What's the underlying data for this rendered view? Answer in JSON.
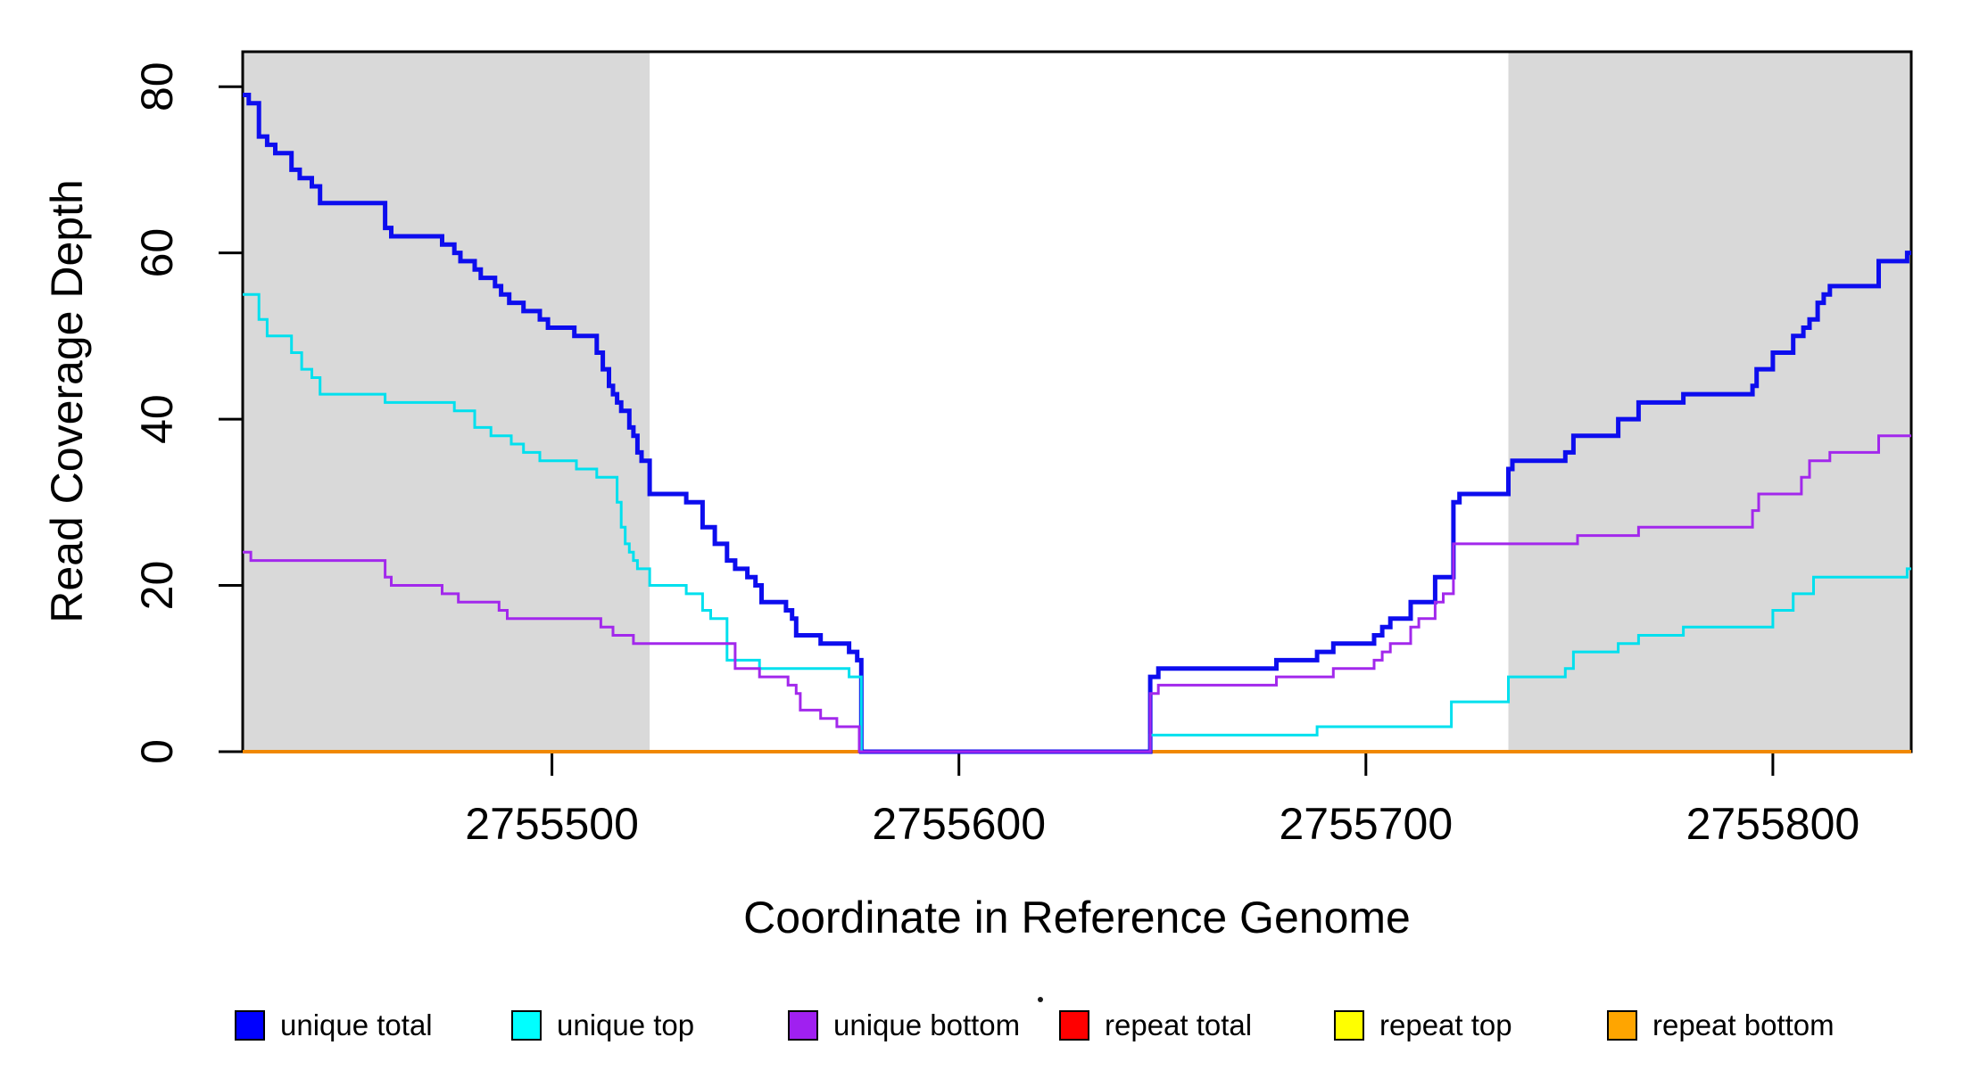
{
  "chart_data": {
    "type": "line",
    "subtype": "step-coverage-plot",
    "title": "",
    "xlabel": "Coordinate in Reference Genome",
    "ylabel": "Read Coverage Depth",
    "xlim": [
      2755424,
      2755834
    ],
    "ylim": [
      0,
      84.2
    ],
    "grid": false,
    "legend_position": "bottom-horizontal",
    "background_color": "#ffffff",
    "frame_color": "#000000",
    "shaded_region_color": "#d9d9d9",
    "shaded_regions": [
      {
        "from": 2755424,
        "to": 2755524
      },
      {
        "from": 2755735,
        "to": 2755834
      }
    ],
    "x_ticks": [
      {
        "value": 2755500,
        "label": "2755500"
      },
      {
        "value": 2755600,
        "label": "2755600"
      },
      {
        "value": 2755700,
        "label": "2755700"
      },
      {
        "value": 2755800,
        "label": "2755800"
      }
    ],
    "y_ticks": [
      {
        "value": 0,
        "label": "0"
      },
      {
        "value": 20,
        "label": "20"
      },
      {
        "value": 40,
        "label": "40"
      },
      {
        "value": 60,
        "label": "60"
      },
      {
        "value": 80,
        "label": "80"
      }
    ],
    "series": [
      {
        "name": "repeat total",
        "color": "#ff0000",
        "line_width": 3,
        "steps": [
          [
            2755424,
            0
          ]
        ]
      },
      {
        "name": "repeat top",
        "color": "#ffff00",
        "line_width": 3,
        "steps": [
          [
            2755424,
            0
          ]
        ]
      },
      {
        "name": "repeat bottom",
        "color": "#f08800",
        "line_width": 4,
        "steps": [
          [
            2755424,
            0
          ]
        ]
      },
      {
        "name": "unique total",
        "color": "#0d0dee",
        "line_width": 5,
        "steps": [
          [
            2755424,
            79
          ],
          [
            2755425.5,
            78
          ],
          [
            2755428,
            74
          ],
          [
            2755430,
            73
          ],
          [
            2755432,
            72
          ],
          [
            2755436,
            70
          ],
          [
            2755438,
            69
          ],
          [
            2755441,
            68
          ],
          [
            2755443,
            66
          ],
          [
            2755459,
            63
          ],
          [
            2755460.5,
            62
          ],
          [
            2755473,
            61
          ],
          [
            2755476,
            60
          ],
          [
            2755477.5,
            59
          ],
          [
            2755481,
            58
          ],
          [
            2755482.5,
            57
          ],
          [
            2755486,
            56
          ],
          [
            2755487.5,
            55
          ],
          [
            2755489.5,
            54
          ],
          [
            2755493,
            53
          ],
          [
            2755497,
            52
          ],
          [
            2755499,
            51
          ],
          [
            2755505.5,
            50
          ],
          [
            2755511,
            48
          ],
          [
            2755512.5,
            46
          ],
          [
            2755514,
            44
          ],
          [
            2755515,
            43
          ],
          [
            2755516,
            42
          ],
          [
            2755517,
            41
          ],
          [
            2755519,
            39
          ],
          [
            2755520,
            38
          ],
          [
            2755521,
            36
          ],
          [
            2755522,
            35
          ],
          [
            2755524,
            31
          ],
          [
            2755533,
            30
          ],
          [
            2755537,
            27
          ],
          [
            2755540,
            25
          ],
          [
            2755543,
            23
          ],
          [
            2755545,
            22
          ],
          [
            2755548,
            21
          ],
          [
            2755550,
            20
          ],
          [
            2755551.5,
            18
          ],
          [
            2755557.5,
            17
          ],
          [
            2755559,
            16
          ],
          [
            2755560,
            14
          ],
          [
            2755566,
            13
          ],
          [
            2755573,
            12
          ],
          [
            2755575,
            11
          ],
          [
            2755576,
            0
          ],
          [
            2755647,
            9
          ],
          [
            2755649,
            10
          ],
          [
            2755678,
            11
          ],
          [
            2755688,
            12
          ],
          [
            2755692,
            13
          ],
          [
            2755702,
            14
          ],
          [
            2755704,
            15
          ],
          [
            2755706,
            16
          ],
          [
            2755711,
            18
          ],
          [
            2755717,
            21
          ],
          [
            2755721.5,
            30
          ],
          [
            2755723,
            31
          ],
          [
            2755735,
            34
          ],
          [
            2755736,
            35
          ],
          [
            2755749,
            36
          ],
          [
            2755751,
            38
          ],
          [
            2755762,
            40
          ],
          [
            2755767,
            42
          ],
          [
            2755778,
            43
          ],
          [
            2755795,
            44
          ],
          [
            2755796,
            46
          ],
          [
            2755800,
            48
          ],
          [
            2755805,
            50
          ],
          [
            2755807.5,
            51
          ],
          [
            2755809,
            52
          ],
          [
            2755811,
            54
          ],
          [
            2755812.5,
            55
          ],
          [
            2755814,
            56
          ],
          [
            2755826,
            59
          ],
          [
            2755833,
            60
          ]
        ]
      },
      {
        "name": "unique top",
        "color": "#00e0ee",
        "line_width": 3,
        "steps": [
          [
            2755424,
            55
          ],
          [
            2755428,
            52
          ],
          [
            2755430,
            50
          ],
          [
            2755436,
            48
          ],
          [
            2755438.5,
            46
          ],
          [
            2755441,
            45
          ],
          [
            2755443,
            43
          ],
          [
            2755459,
            42
          ],
          [
            2755476,
            41
          ],
          [
            2755481,
            39
          ],
          [
            2755485,
            38
          ],
          [
            2755490,
            37
          ],
          [
            2755493,
            36
          ],
          [
            2755497,
            35
          ],
          [
            2755506,
            34
          ],
          [
            2755511,
            33
          ],
          [
            2755516,
            30
          ],
          [
            2755517,
            27
          ],
          [
            2755518,
            25
          ],
          [
            2755519,
            24
          ],
          [
            2755520,
            23
          ],
          [
            2755521,
            22
          ],
          [
            2755524,
            20
          ],
          [
            2755533,
            19
          ],
          [
            2755537,
            17
          ],
          [
            2755539,
            16
          ],
          [
            2755543,
            11
          ],
          [
            2755551,
            10
          ],
          [
            2755573,
            9
          ],
          [
            2755576,
            0
          ],
          [
            2755647,
            2
          ],
          [
            2755688,
            3
          ],
          [
            2755721,
            6
          ],
          [
            2755735,
            9
          ],
          [
            2755749,
            10
          ],
          [
            2755751,
            12
          ],
          [
            2755762,
            13
          ],
          [
            2755767,
            14
          ],
          [
            2755778,
            15
          ],
          [
            2755800,
            17
          ],
          [
            2755805,
            19
          ],
          [
            2755810,
            21
          ],
          [
            2755833,
            22
          ]
        ]
      },
      {
        "name": "unique bottom",
        "color": "#a228ec",
        "line_width": 3,
        "steps": [
          [
            2755424,
            24
          ],
          [
            2755426,
            23
          ],
          [
            2755459,
            21
          ],
          [
            2755460.5,
            20
          ],
          [
            2755473,
            19
          ],
          [
            2755477,
            18
          ],
          [
            2755487,
            17
          ],
          [
            2755489,
            16
          ],
          [
            2755512,
            15
          ],
          [
            2755515,
            14
          ],
          [
            2755520,
            13
          ],
          [
            2755545,
            10
          ],
          [
            2755551,
            9
          ],
          [
            2755558,
            8
          ],
          [
            2755560,
            7
          ],
          [
            2755561,
            5
          ],
          [
            2755566,
            4
          ],
          [
            2755570,
            3
          ],
          [
            2755575.5,
            0
          ],
          [
            2755647,
            7
          ],
          [
            2755649,
            8
          ],
          [
            2755678,
            9
          ],
          [
            2755692,
            10
          ],
          [
            2755702,
            11
          ],
          [
            2755704,
            12
          ],
          [
            2755706,
            13
          ],
          [
            2755711,
            15
          ],
          [
            2755713,
            16
          ],
          [
            2755717,
            18
          ],
          [
            2755719,
            19
          ],
          [
            2755721.5,
            25
          ],
          [
            2755752,
            26
          ],
          [
            2755767,
            27
          ],
          [
            2755795,
            29
          ],
          [
            2755796.5,
            31
          ],
          [
            2755807,
            33
          ],
          [
            2755809,
            35
          ],
          [
            2755814,
            36
          ],
          [
            2755826,
            38
          ]
        ]
      }
    ],
    "legend": [
      {
        "label": "unique total",
        "color": "#0000ff"
      },
      {
        "label": "unique top",
        "color": "#00ffff"
      },
      {
        "label": "unique bottom",
        "color": "#a020f0"
      },
      {
        "label": "repeat total",
        "color": "#ff0000"
      },
      {
        "label": "repeat top",
        "color": "#ffff00"
      },
      {
        "label": "repeat bottom",
        "color": "#ffa500"
      }
    ]
  }
}
